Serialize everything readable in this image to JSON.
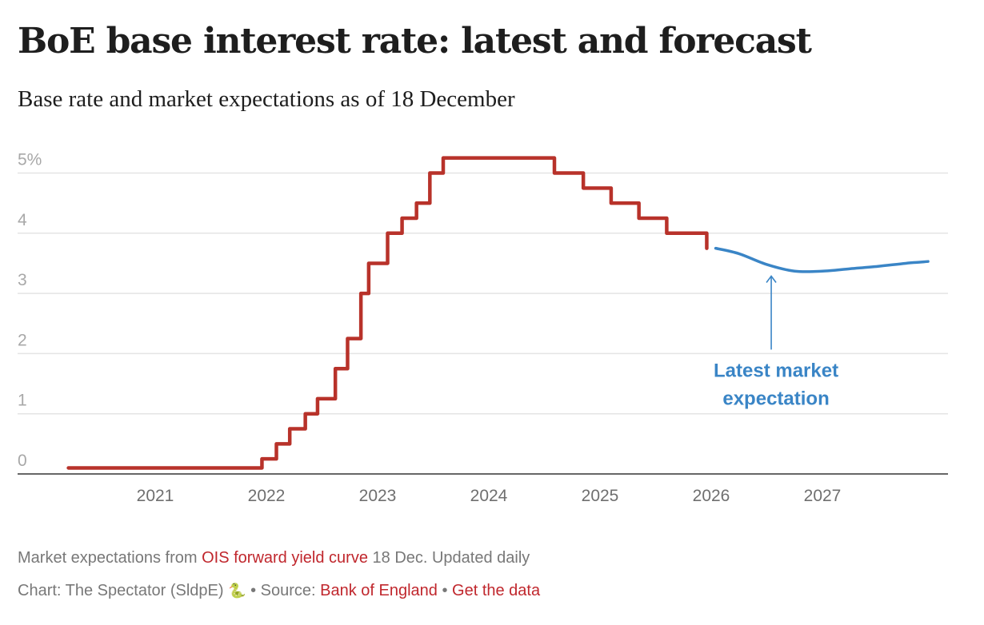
{
  "header": {
    "title": "BoE base interest rate: latest and forecast",
    "subtitle": "Base rate and market expectations as of 18 December"
  },
  "chart_data": {
    "type": "line",
    "title": "BoE base interest rate: latest and forecast",
    "subtitle": "Base rate and market expectations as of 18 December",
    "xlabel": "",
    "ylabel": "",
    "xlim": [
      2020.0,
      2028.1
    ],
    "ylim": [
      0,
      5.25
    ],
    "grid": true,
    "y_ticks": [
      0,
      1,
      2,
      3,
      4,
      5
    ],
    "y_tick_labels": [
      "0",
      "1",
      "2",
      "3",
      "4",
      "5%"
    ],
    "x_ticks": [
      2021,
      2022,
      2023,
      2024,
      2025,
      2026,
      2027
    ],
    "x_tick_labels": [
      "2021",
      "2022",
      "2023",
      "2024",
      "2025",
      "2026",
      "2027"
    ],
    "series": [
      {
        "name": "Base rate",
        "style": "step",
        "color": "#b8322a",
        "x": [
          2020.22,
          2021.96,
          2022.09,
          2022.21,
          2022.35,
          2022.46,
          2022.62,
          2022.73,
          2022.85,
          2022.92,
          2023.09,
          2023.22,
          2023.35,
          2023.47,
          2023.59,
          2024.59,
          2024.85,
          2025.1,
          2025.35,
          2025.6,
          2025.96
        ],
        "values": [
          0.1,
          0.25,
          0.5,
          0.75,
          1.0,
          1.25,
          1.75,
          2.25,
          3.0,
          3.5,
          4.0,
          4.25,
          4.5,
          5.0,
          5.25,
          5.0,
          4.75,
          4.5,
          4.25,
          4.0,
          3.75
        ],
        "end_x": 2025.96
      },
      {
        "name": "Latest market expectation",
        "style": "smooth",
        "color": "#3a85c6",
        "x": [
          2026.04,
          2026.25,
          2026.5,
          2026.75,
          2027.0,
          2027.25,
          2027.5,
          2027.75,
          2027.95
        ],
        "values": [
          3.75,
          3.66,
          3.48,
          3.37,
          3.37,
          3.41,
          3.45,
          3.5,
          3.53
        ]
      }
    ],
    "annotations": [
      {
        "text_lines": [
          "Latest market",
          "expectation"
        ],
        "arrow_from": [
          2026.54,
          2.0
        ],
        "arrow_to": [
          2026.54,
          3.3
        ],
        "color": "#3a85c6"
      }
    ]
  },
  "footer": {
    "line1_prefix": "Market expectations from ",
    "line1_link": "OIS forward yield curve",
    "line1_suffix": " 18 Dec. Updated daily",
    "line2_prefix": "Chart: The Spectator (SldpE) ",
    "snake_icon": "🐍",
    "separator": " • ",
    "source_label": "Source: ",
    "source_link": "Bank of England",
    "data_link": "Get the data"
  },
  "colors": {
    "base_rate": "#b8322a",
    "forecast": "#3a85c6",
    "link": "#c0272d",
    "grid": "#e4e4e4"
  }
}
